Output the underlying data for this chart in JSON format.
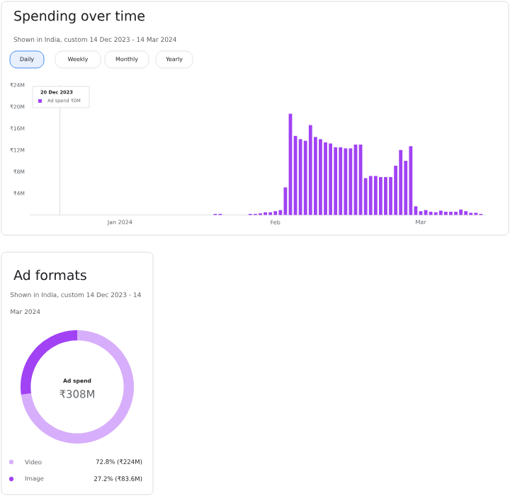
{
  "chart_data": [
    {
      "type": "bar",
      "title": "Spending over time",
      "subtitle": "Shown in India, custom 14 Dec 2023 - 14 Mar 2024",
      "annotations": [
        "Daily",
        "Weekly",
        "Monthly",
        "Yearly",
        "20 Dec 2023",
        "Ad spend ₹0M"
      ],
      "x": [
        "2024-01-20",
        "2024-01-21",
        "2024-01-22",
        "2024-01-23",
        "2024-01-24",
        "2024-01-25",
        "2024-01-26",
        "2024-01-27",
        "2024-01-28",
        "2024-01-29",
        "2024-01-30",
        "2024-01-31",
        "2024-02-01",
        "2024-02-02",
        "2024-02-03",
        "2024-02-04",
        "2024-02-05",
        "2024-02-06",
        "2024-02-07",
        "2024-02-08",
        "2024-02-09",
        "2024-02-10",
        "2024-02-11",
        "2024-02-12",
        "2024-02-13",
        "2024-02-14",
        "2024-02-15",
        "2024-02-16",
        "2024-02-17",
        "2024-02-18",
        "2024-02-19",
        "2024-02-20",
        "2024-02-21",
        "2024-02-22",
        "2024-02-23",
        "2024-02-24",
        "2024-02-25",
        "2024-02-26",
        "2024-02-27",
        "2024-02-28",
        "2024-02-29",
        "2024-03-01",
        "2024-03-02",
        "2024-03-03",
        "2024-03-04",
        "2024-03-05",
        "2024-03-06",
        "2024-03-07",
        "2024-03-08",
        "2024-03-09",
        "2024-03-10",
        "2024-03-11",
        "2024-03-12",
        "2024-03-13"
      ],
      "values": [
        0.2,
        0.2,
        0,
        0,
        0,
        0,
        0,
        0.2,
        0.2,
        0.3,
        0.5,
        0.5,
        0.7,
        0.9,
        5.1,
        18.7,
        14.6,
        14.0,
        13.7,
        16.6,
        14.4,
        14.0,
        13.4,
        13.2,
        12.5,
        12.5,
        12.3,
        12.3,
        13.0,
        13.0,
        6.8,
        7.2,
        7.2,
        7.0,
        7.0,
        7.0,
        9.1,
        12.0,
        10.0,
        12.7,
        1.6,
        0.7,
        0.9,
        0.6,
        0.5,
        0.8,
        0.6,
        0.6,
        0.6,
        1.0,
        0.7,
        0.4,
        0.4,
        0.2
      ],
      "color": "#a142f4",
      "xlim": [
        "2023-12-14",
        "2024-03-14"
      ],
      "ylim": [
        0,
        24
      ],
      "xticks": [
        {
          "value": "2024-01-01",
          "label": "Jan 2024"
        },
        {
          "value": "2024-02-01",
          "label": "Feb"
        },
        {
          "value": "2024-03-01",
          "label": "Mar"
        }
      ],
      "yticks": [
        {
          "value": 4,
          "label": "₹4M"
        },
        {
          "value": 8,
          "label": "₹8M"
        },
        {
          "value": 12,
          "label": "₹12M"
        },
        {
          "value": 16,
          "label": "₹16M"
        },
        {
          "value": 20,
          "label": "₹20M"
        },
        {
          "value": 24,
          "label": "₹24M"
        }
      ],
      "ref_lines": [
        {
          "axis": "x",
          "value": "2023-12-20",
          "color": "#dadce0"
        }
      ]
    },
    {
      "type": "donut",
      "title": "Ad formats",
      "subtitle": "Shown in India, custom 14 Dec 2023 - 14 Mar 2024",
      "categories": [
        "Video",
        "Image"
      ],
      "values": [
        72.8,
        27.2
      ],
      "colors": [
        "#d7aefb",
        "#a142f4"
      ],
      "value_labels": [
        "72.8% (₹224M)",
        "27.2% (₹83.6M)"
      ],
      "annotations": [
        "Ad spend",
        "₹308M"
      ],
      "legend": "bottom"
    }
  ]
}
